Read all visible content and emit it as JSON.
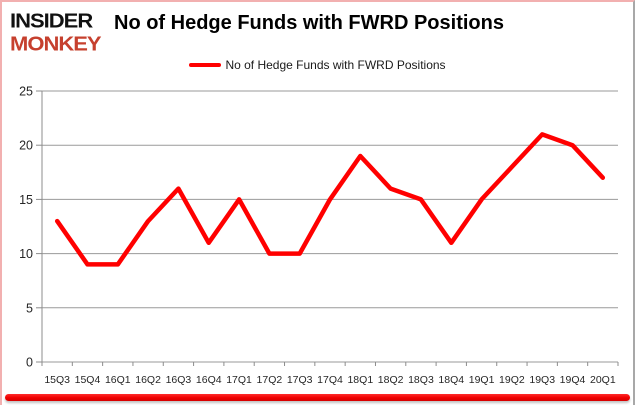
{
  "logo": {
    "line1": "INSIDER",
    "line2": "MONKEY"
  },
  "title": "No of Hedge Funds with FWRD Positions",
  "legend": {
    "label": "No of Hedge Funds with FWRD Positions"
  },
  "colors": {
    "line": "#ff0000",
    "grid": "#9a9a9a",
    "axis": "#8c8c8c",
    "axis_text": "#262626",
    "title_text": "#000000",
    "logo_black": "#111111",
    "logo_accent": "#c6402e",
    "frame_border": "#f2b0b0",
    "bottom_bar": "#ee0000"
  },
  "chart_data": {
    "type": "line",
    "title": "No of Hedge Funds with FWRD Positions",
    "categories": [
      "15Q3",
      "15Q4",
      "16Q1",
      "16Q2",
      "16Q3",
      "16Q4",
      "17Q1",
      "17Q2",
      "17Q3",
      "17Q4",
      "18Q1",
      "18Q2",
      "18Q3",
      "18Q4",
      "19Q1",
      "19Q2",
      "19Q3",
      "19Q4",
      "20Q1"
    ],
    "series": [
      {
        "name": "No of Hedge Funds with FWRD Positions",
        "values": [
          13,
          9,
          9,
          13,
          16,
          11,
          15,
          10,
          10,
          15,
          19,
          16,
          15,
          11,
          15,
          18,
          21,
          20,
          17
        ]
      }
    ],
    "xlabel": "",
    "ylabel": "",
    "ylim": [
      0,
      25
    ],
    "ytick_step": 5,
    "grid": "horizontal",
    "legend_position": "top-center"
  }
}
